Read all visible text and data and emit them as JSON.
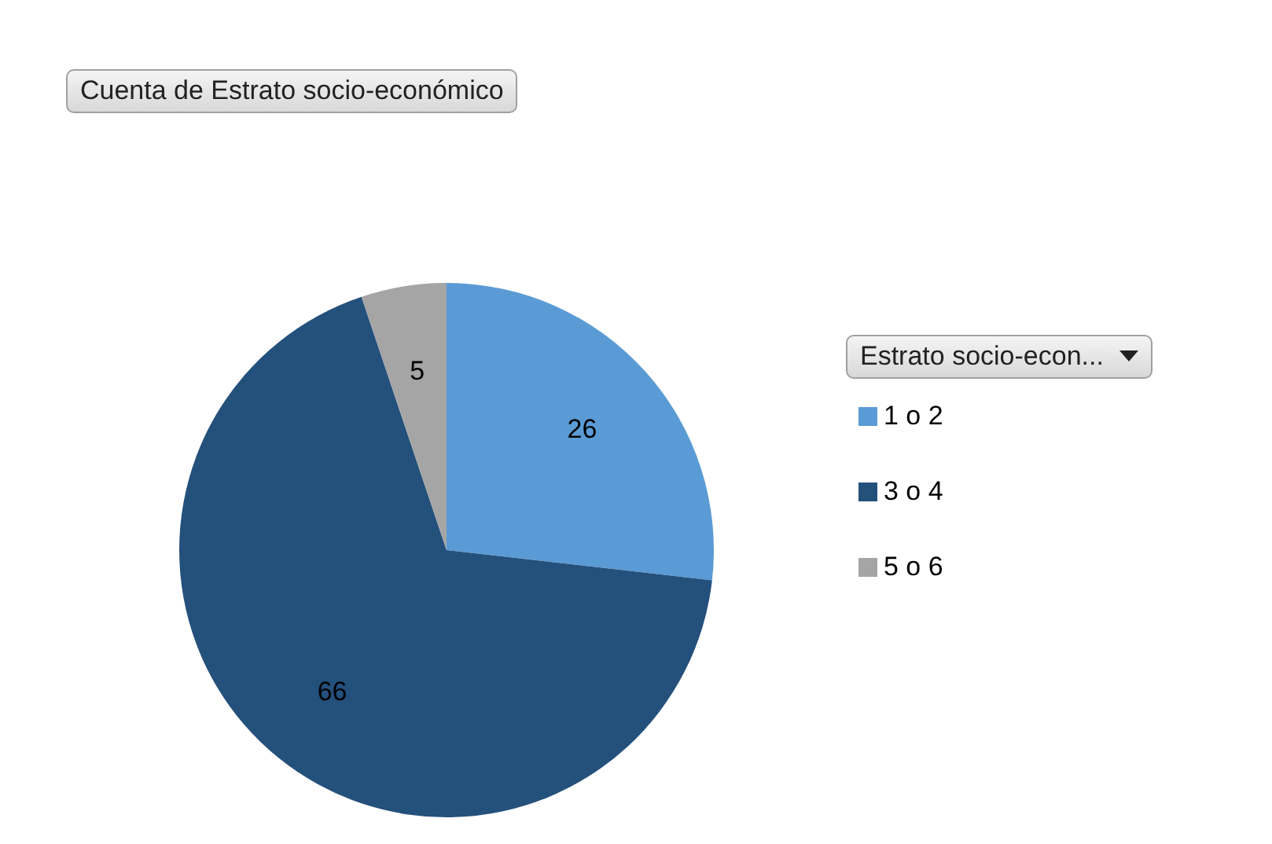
{
  "chart_data": {
    "type": "pie",
    "title": "Cuenta de Estrato socio-económico",
    "legend_title": "Estrato socio-econ...",
    "categories": [
      "1 o 2",
      "3 o 4",
      "5 o 6"
    ],
    "values": [
      26,
      66,
      5
    ],
    "colors": [
      "#5b9bd5",
      "#24507c",
      "#a5a5a5"
    ],
    "data_labels": true,
    "legend": "right"
  }
}
